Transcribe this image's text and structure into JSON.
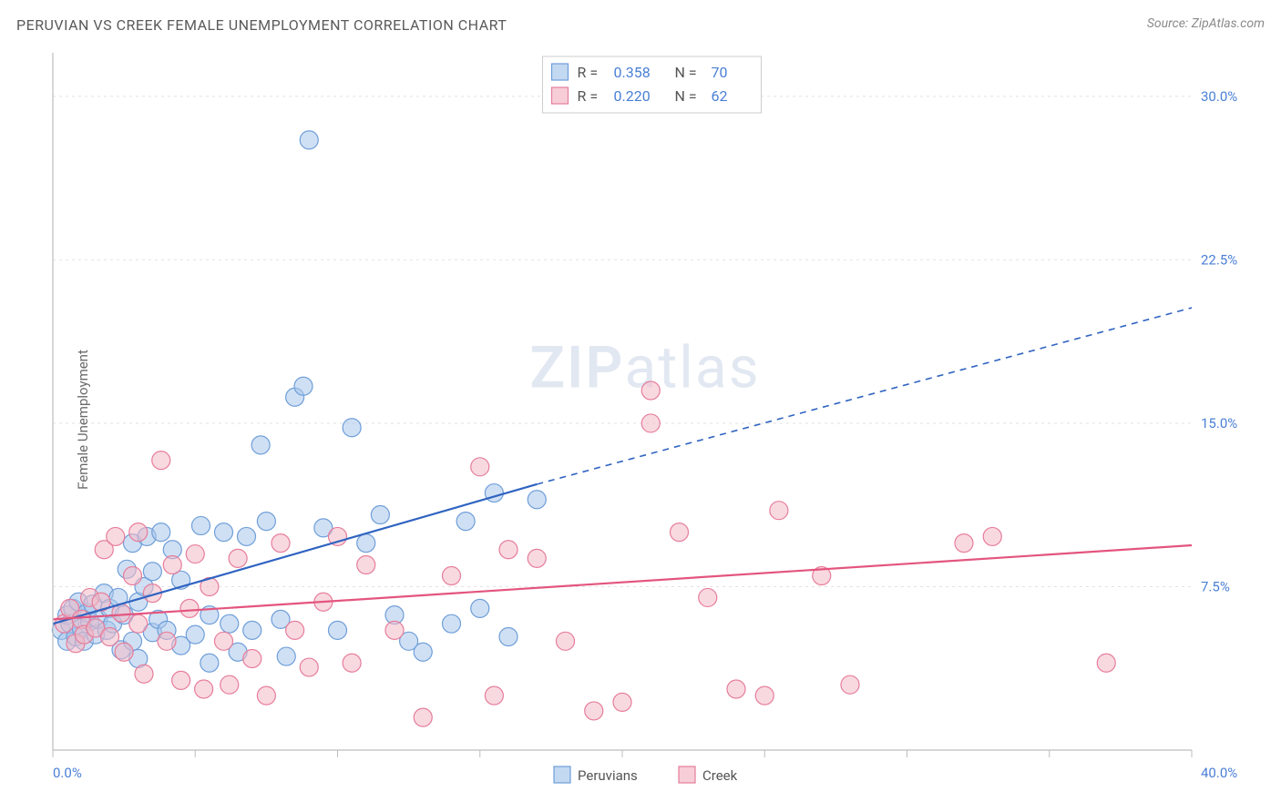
{
  "title": "PERUVIAN VS CREEK FEMALE UNEMPLOYMENT CORRELATION CHART",
  "source": "Source: ZipAtlas.com",
  "ylabel": "Female Unemployment",
  "watermark": "ZIPatlas",
  "chart": {
    "type": "scatter",
    "background_color": "#ffffff",
    "grid_color": "#e2e2e2",
    "axis_color": "#bdbdbd",
    "tick_color": "#bdbdbd",
    "label_color": "#4a7fd6",
    "xlim": [
      0,
      40
    ],
    "ylim": [
      0,
      32
    ],
    "x_ticks": [
      0,
      5,
      10,
      15,
      20,
      25,
      30,
      35,
      40
    ],
    "x_tick_labels": {
      "0": "0.0%",
      "40": "40.0%"
    },
    "y_grid": [
      7.5,
      15.0,
      22.5,
      30.0
    ],
    "y_tick_labels": [
      "7.5%",
      "15.0%",
      "22.5%",
      "30.0%"
    ],
    "marker_radius": 10,
    "marker_stroke_width": 1.2,
    "series": [
      {
        "name": "Peruvians",
        "fill": "#a9c7eb",
        "stroke": "#6e9ed9",
        "fill_opacity": 0.55,
        "R": "0.358",
        "N": "70",
        "trend": {
          "solid": {
            "x1": 0,
            "y1": 5.8,
            "x2": 17,
            "y2": 12.2
          },
          "dashed": {
            "x1": 17,
            "y1": 12.2,
            "x2": 40,
            "y2": 20.3
          },
          "color": "#2f63c1",
          "width": 2.2
        },
        "points": [
          [
            0.3,
            5.5
          ],
          [
            0.5,
            6.2
          ],
          [
            0.5,
            5.0
          ],
          [
            0.6,
            5.8
          ],
          [
            0.7,
            6.5
          ],
          [
            0.8,
            5.2
          ],
          [
            0.9,
            6.8
          ],
          [
            1.0,
            5.6
          ],
          [
            1.1,
            5.0
          ],
          [
            1.2,
            6.3
          ],
          [
            1.3,
            5.9
          ],
          [
            1.4,
            6.7
          ],
          [
            1.5,
            5.3
          ],
          [
            1.6,
            6.0
          ],
          [
            1.8,
            7.2
          ],
          [
            1.9,
            5.5
          ],
          [
            2.0,
            6.5
          ],
          [
            2.1,
            5.8
          ],
          [
            2.3,
            7.0
          ],
          [
            2.4,
            4.6
          ],
          [
            2.5,
            6.2
          ],
          [
            2.6,
            8.3
          ],
          [
            2.8,
            5.0
          ],
          [
            2.8,
            9.5
          ],
          [
            3.0,
            6.8
          ],
          [
            3.0,
            4.2
          ],
          [
            3.2,
            7.5
          ],
          [
            3.3,
            9.8
          ],
          [
            3.5,
            5.4
          ],
          [
            3.5,
            8.2
          ],
          [
            3.7,
            6.0
          ],
          [
            3.8,
            10.0
          ],
          [
            4.0,
            5.5
          ],
          [
            4.2,
            9.2
          ],
          [
            4.5,
            4.8
          ],
          [
            4.5,
            7.8
          ],
          [
            5.0,
            5.3
          ],
          [
            5.2,
            10.3
          ],
          [
            5.5,
            6.2
          ],
          [
            5.5,
            4.0
          ],
          [
            6.0,
            10.0
          ],
          [
            6.2,
            5.8
          ],
          [
            6.5,
            4.5
          ],
          [
            6.8,
            9.8
          ],
          [
            7.0,
            5.5
          ],
          [
            7.3,
            14.0
          ],
          [
            7.5,
            10.5
          ],
          [
            8.0,
            6.0
          ],
          [
            8.2,
            4.3
          ],
          [
            8.5,
            16.2
          ],
          [
            8.8,
            16.7
          ],
          [
            9.0,
            28.0
          ],
          [
            9.5,
            10.2
          ],
          [
            10.0,
            5.5
          ],
          [
            10.5,
            14.8
          ],
          [
            11.0,
            9.5
          ],
          [
            11.5,
            10.8
          ],
          [
            12.0,
            6.2
          ],
          [
            12.5,
            5.0
          ],
          [
            13.0,
            4.5
          ],
          [
            14.0,
            5.8
          ],
          [
            14.5,
            10.5
          ],
          [
            15.0,
            6.5
          ],
          [
            15.5,
            11.8
          ],
          [
            16.0,
            5.2
          ],
          [
            17.0,
            11.5
          ]
        ]
      },
      {
        "name": "Creek",
        "fill": "#f4b9c7",
        "stroke": "#e67d9b",
        "fill_opacity": 0.55,
        "R": "0.220",
        "N": "62",
        "trend": {
          "solid": {
            "x1": 0,
            "y1": 6.0,
            "x2": 40,
            "y2": 9.4
          },
          "color": "#e3557e",
          "width": 2.2
        },
        "points": [
          [
            0.4,
            5.8
          ],
          [
            0.6,
            6.5
          ],
          [
            0.8,
            4.9
          ],
          [
            1.0,
            6.0
          ],
          [
            1.1,
            5.3
          ],
          [
            1.3,
            7.0
          ],
          [
            1.5,
            5.6
          ],
          [
            1.7,
            6.8
          ],
          [
            1.8,
            9.2
          ],
          [
            2.0,
            5.2
          ],
          [
            2.2,
            9.8
          ],
          [
            2.4,
            6.3
          ],
          [
            2.5,
            4.5
          ],
          [
            2.8,
            8.0
          ],
          [
            3.0,
            5.8
          ],
          [
            3.0,
            10.0
          ],
          [
            3.2,
            3.5
          ],
          [
            3.5,
            7.2
          ],
          [
            3.8,
            13.3
          ],
          [
            4.0,
            5.0
          ],
          [
            4.2,
            8.5
          ],
          [
            4.5,
            3.2
          ],
          [
            4.8,
            6.5
          ],
          [
            5.0,
            9.0
          ],
          [
            5.3,
            2.8
          ],
          [
            5.5,
            7.5
          ],
          [
            6.0,
            5.0
          ],
          [
            6.2,
            3.0
          ],
          [
            6.5,
            8.8
          ],
          [
            7.0,
            4.2
          ],
          [
            7.5,
            2.5
          ],
          [
            8.0,
            9.5
          ],
          [
            8.5,
            5.5
          ],
          [
            9.0,
            3.8
          ],
          [
            9.5,
            6.8
          ],
          [
            10.0,
            9.8
          ],
          [
            10.5,
            4.0
          ],
          [
            11.0,
            8.5
          ],
          [
            12.0,
            5.5
          ],
          [
            13.0,
            1.5
          ],
          [
            14.0,
            8.0
          ],
          [
            15.0,
            13.0
          ],
          [
            15.5,
            2.5
          ],
          [
            16.0,
            9.2
          ],
          [
            17.0,
            8.8
          ],
          [
            18.0,
            5.0
          ],
          [
            19.0,
            1.8
          ],
          [
            20.0,
            2.2
          ],
          [
            21.0,
            16.5
          ],
          [
            21.0,
            15.0
          ],
          [
            22.0,
            10.0
          ],
          [
            23.0,
            7.0
          ],
          [
            24.0,
            2.8
          ],
          [
            25.0,
            2.5
          ],
          [
            25.5,
            11.0
          ],
          [
            27.0,
            8.0
          ],
          [
            28.0,
            3.0
          ],
          [
            32.0,
            9.5
          ],
          [
            33.0,
            9.8
          ],
          [
            37.0,
            4.0
          ]
        ]
      }
    ],
    "top_legend": {
      "rows": [
        {
          "swatch": 0,
          "r": "0.358",
          "n": "70"
        },
        {
          "swatch": 1,
          "r": "0.220",
          "n": "62"
        }
      ]
    },
    "bottom_legend": [
      {
        "swatch": 0,
        "label": "Peruvians"
      },
      {
        "swatch": 1,
        "label": "Creek"
      }
    ]
  }
}
